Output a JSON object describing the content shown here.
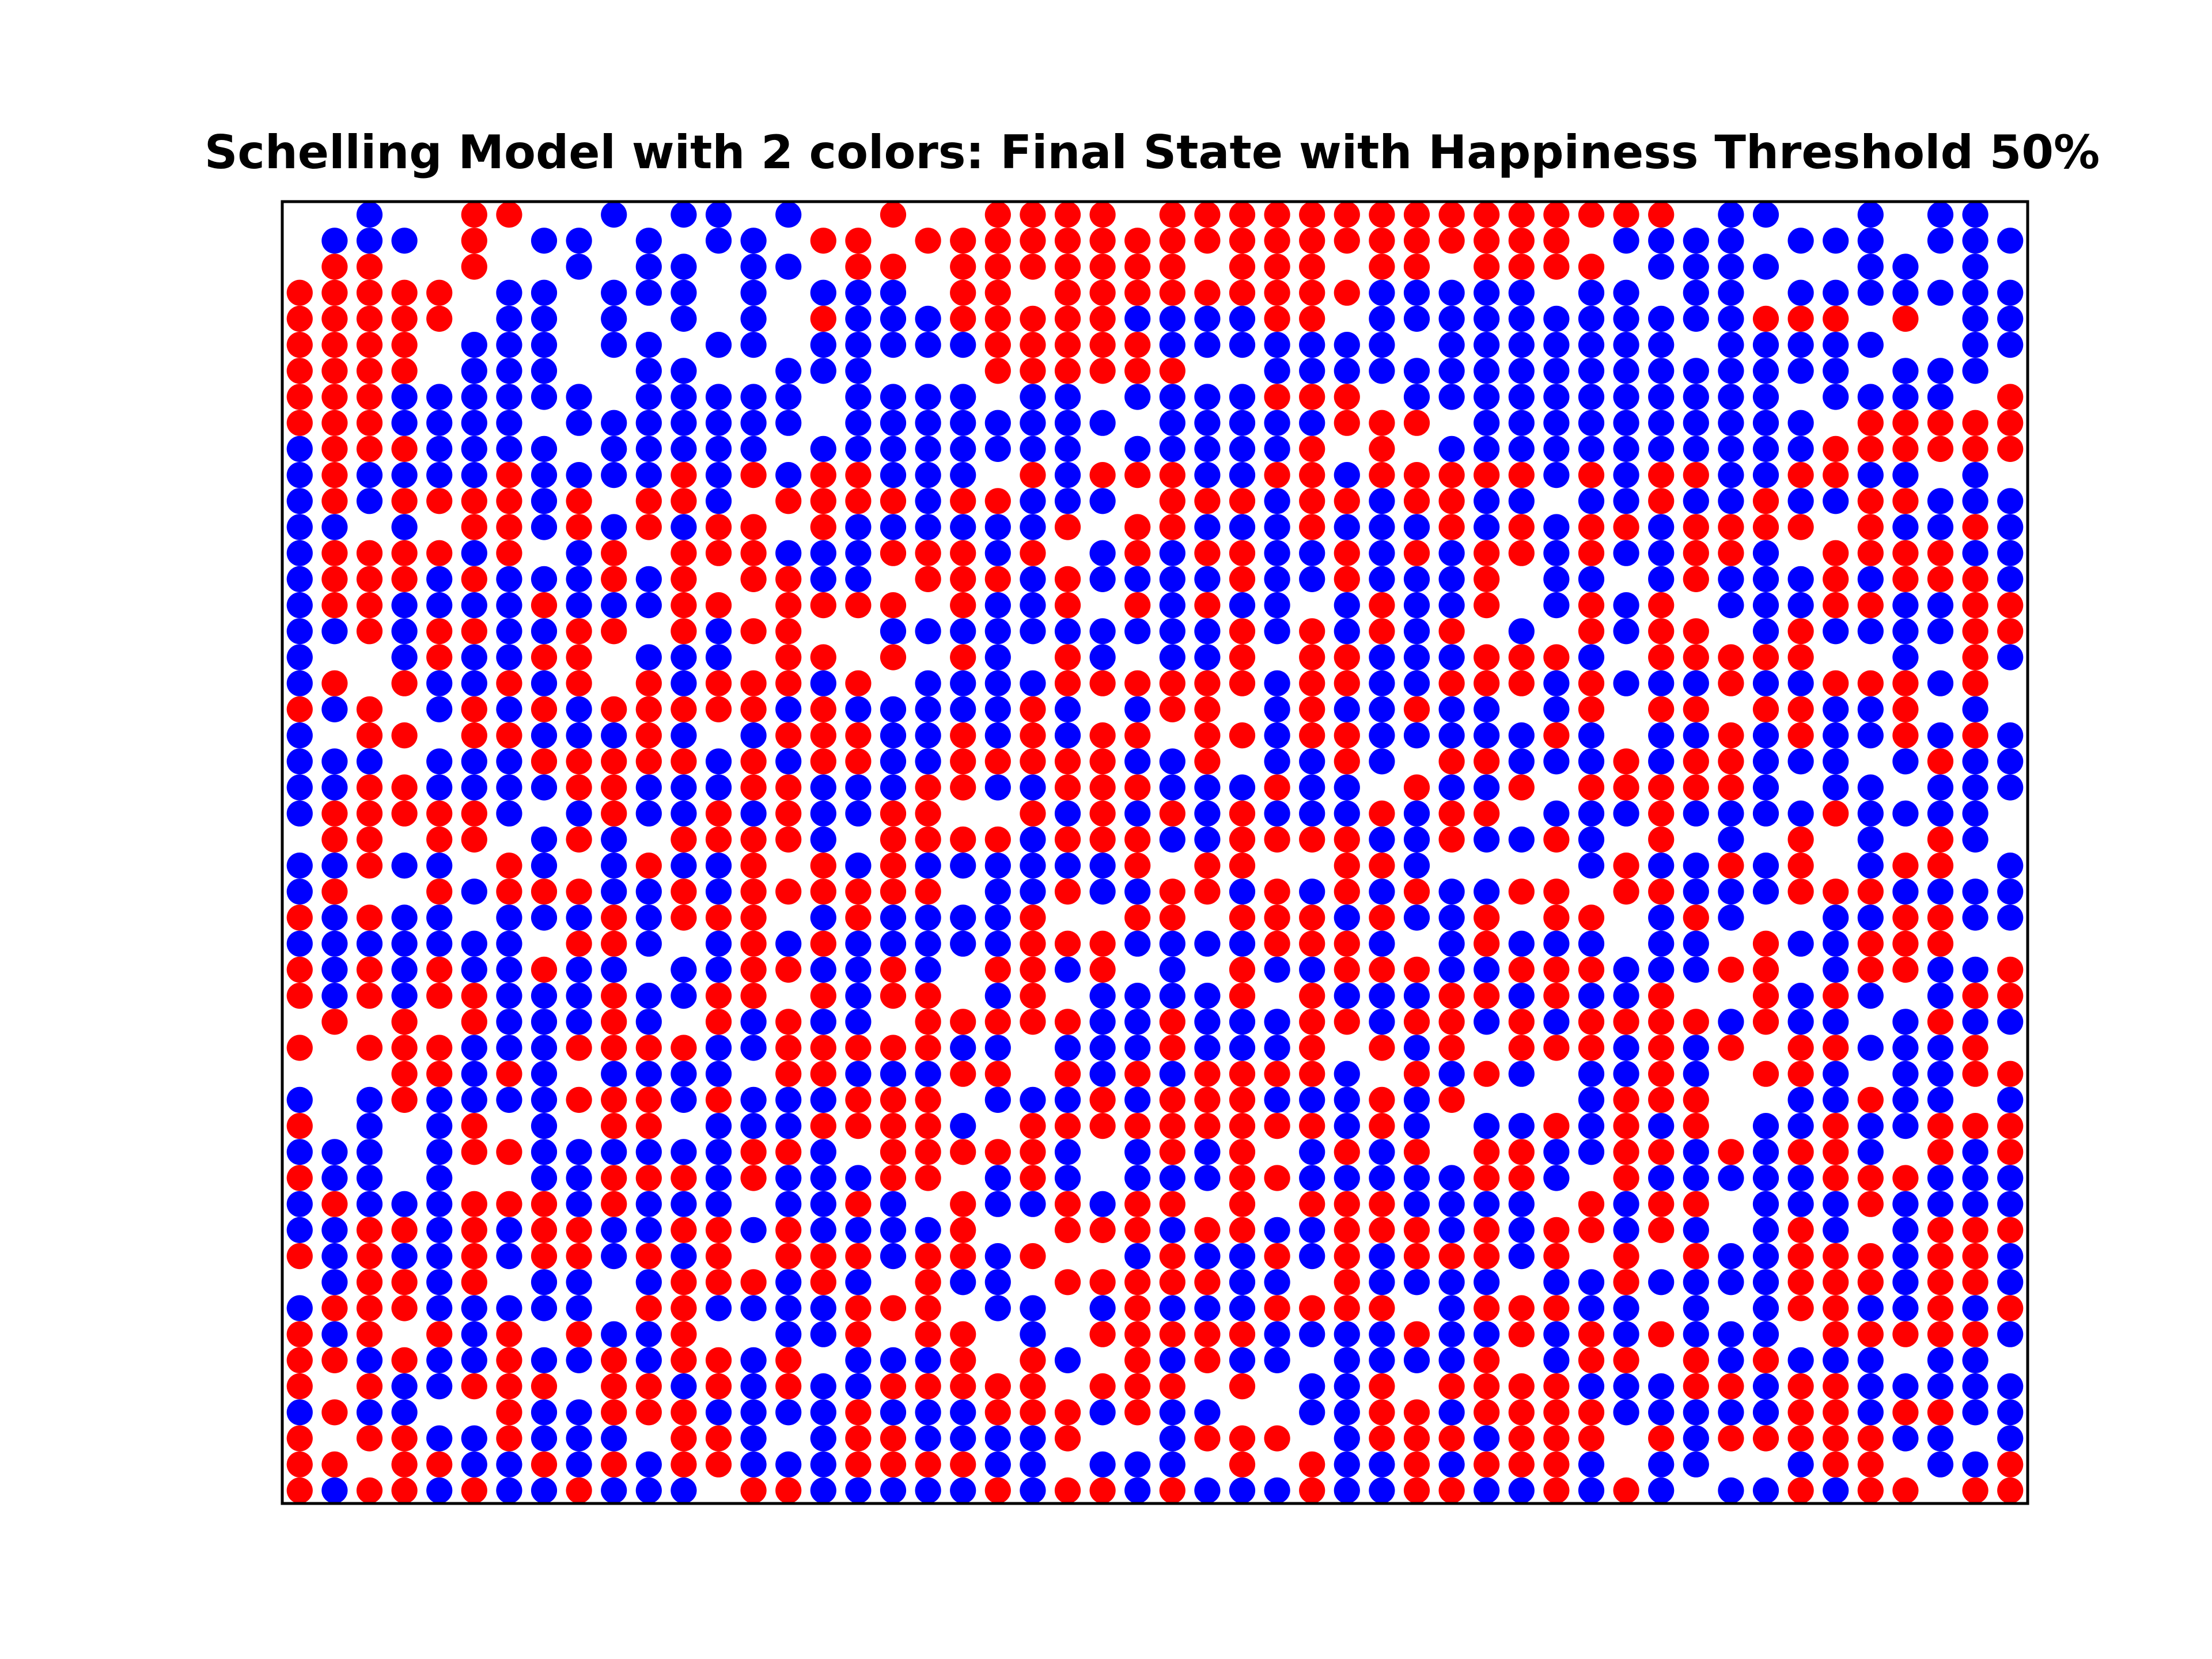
{
  "chart_data": {
    "type": "scatter",
    "title": "Schelling Model with 2 colors: Final State with Happiness Threshold 50%",
    "xlabel": "",
    "ylabel": "",
    "grid": false,
    "axis_ticks": false,
    "grid_size": [
      50,
      50
    ],
    "colors": {
      "red": "#ff0000",
      "blue": "#0000ff"
    },
    "series": [
      {
        "color": "#ff0000",
        "rows": [
          "............................................",
          "..............................................",
          "......RR...........RR...RRR.RR.RRRRR.RRRR.............................RR...........",
          "R...R........R...........R.R........R...R..R..................................R.......R",
          "RRRR.R.....RR..RRRRRRRRR...R..RR...RR.....RR.....R.RRRRRR",
          "RRRR.RR.........RRRRR.R..RR.......RRRRRRRRR.........R..R",
          "RR.R.......R.R.RR...RR....R.......RR..R.....R.R.....R..RRRRRR.......RRRR.R"
        ]
      }
    ],
    "rows": [
      "..B..RR..B.BB.B..R..RRRR.RRRRRRRRRRRRRRR.BB..B.BB.BBBBBB.B...RR..B..BBBB",
      ".BBB.R.BB.B.BB.RR.RRRRRRRRRRRRRRRRRRR.BBBB.BBB.BBB.BBBB.BB.BBBBB.RRR.BBBBB",
      ".RR..R..B.BB.BB.RR.RRRRRRR.RRR.RR.RRRR.BBBB..BB.B.BBBBBBB.RRBBB.BBBBB",
      "RRRRR.BB.BBB.B.BBB.RR.RRRRRRRRRBBBBB.BB.BB.BBBBBBBBBBBBRBBBB.BBBBBBBBB",
      "RRRRR.BB.B.B.B.RBBBRRRRRBBBBRR.BBBBBBBBBBBRRR.R.BBBBBBBBBBBBBBBB",
      "RRRR.BBB.BB.BB.BBBBBRRRRRBBBBBBB.BBBBBBB.BBBBB..BBBBB.BBBBB..BB",
      "RRRR.BBB..BB..BBB...RRRRRR..BBBBBBBBBBBBBBBBB.BBB..BBB.RR..BBB..RRRRRR",
      "RRRBBBBBB.BBBBB.BBBB.BB.BBBBRRR.BBBBBBBBBBB.BBBB.RRRR.RRRBB.RRRRRR",
      "RRRBBBB.BBBBBBB.BBBBBBBB.BBBBBRRR.BBBBBBBBBB.RRRRRRRR.RRRRR.RRRRRRR",
      "BRRRBBBB.BBBBB.BBBBBBBB.BBBBBR.R.BBBBBBBBBBBRRRRRRRBRRRRRRRRBB.RRRR"
    ]
  }
}
